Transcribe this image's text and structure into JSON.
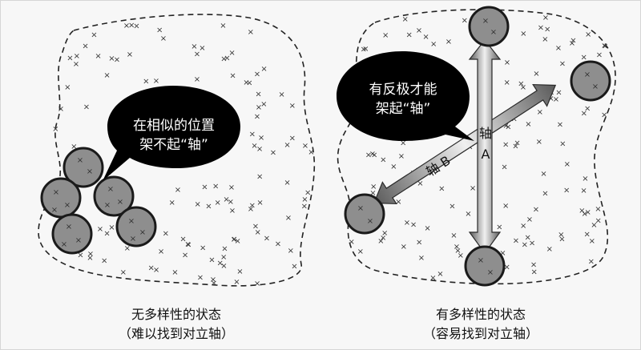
{
  "colors": {
    "background": "#f7f7f7",
    "circle_fill": "#8e8e8e",
    "circle_stroke": "#1a1a1a",
    "bubble": "#000000",
    "arrow_light": "#e6e6e6",
    "arrow_dark": "#5a5a5a",
    "marks": "#333333"
  },
  "left_panel": {
    "bubble_line1": "在相似的位置",
    "bubble_line2": "架不起“轴”",
    "caption_line1": "无多样性的状态",
    "caption_line2": "（难以找到对立轴）"
  },
  "right_panel": {
    "bubble_line1": "有反极才能",
    "bubble_line2": "架起“轴”",
    "axis_a_label_1": "轴",
    "axis_a_label_2": "A",
    "axis_b_label": "轴 B",
    "caption_line1": "有多样性的状态",
    "caption_line2": "（容易找到对立轴）"
  }
}
